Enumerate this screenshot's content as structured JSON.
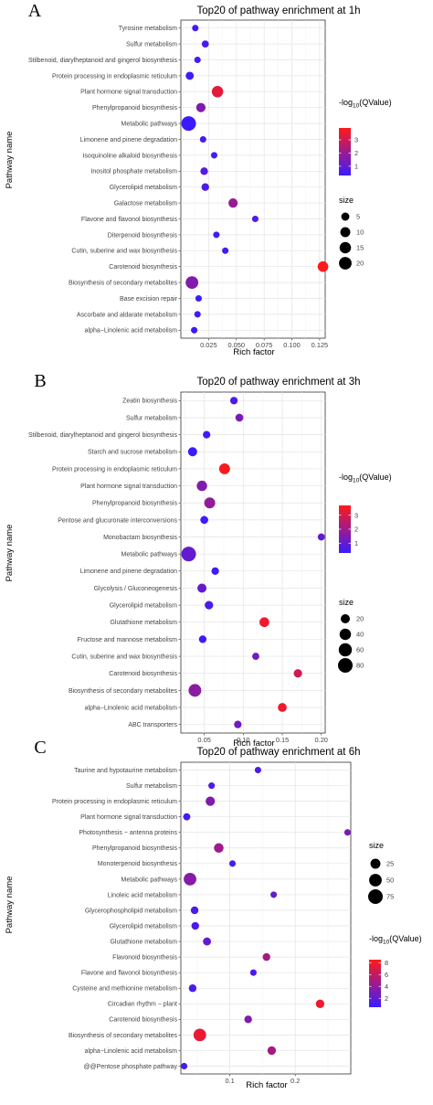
{
  "chart_data": [
    {
      "type": "scatter",
      "panel_label": "A",
      "title": "Top20 of pathway enrichment at 1h",
      "xlabel": "Rich factor",
      "ylabel": "Pathway name",
      "xlim": [
        0.0,
        0.13
      ],
      "xticks": [
        0.025,
        0.05,
        0.075,
        0.1,
        0.125
      ],
      "xtick_labels": [
        "0.025",
        "0.050",
        "0.075",
        "0.100",
        "0.125"
      ],
      "grid": true,
      "legend_order": [
        "color",
        "size"
      ],
      "categories": [
        "Tyrosine metabolism",
        "Sulfur metabolism",
        "Stilbenoid, diarylheptanoid and gingerol biosynthesis",
        "Protein processing in endoplasmic reticulum",
        "Plant hormone signal transduction",
        "Phenylpropanoid biosynthesis",
        "Metabolic pathways",
        "Limonene and pinene degradation",
        "Isoquinoline alkaloid biosynthesis",
        "Inositol phosphate metabolism",
        "Glycerolipid metabolism",
        "Galactose metabolism",
        "Flavone and flavonol biosynthesis",
        "Diterpenoid biosynthesis",
        "Cutin, suberine and wax biosynthesis",
        "Carotenoid biosynthesis",
        "Biosynthesis of secondary metabolites",
        "Base excision repair",
        "Ascorbate and aldarate metabolism",
        "alpha−Linolenic acid metabolism"
      ],
      "rich_factor": [
        0.013,
        0.022,
        0.015,
        0.008,
        0.033,
        0.018,
        0.007,
        0.02,
        0.03,
        0.021,
        0.022,
        0.047,
        0.067,
        0.032,
        0.04,
        0.128,
        0.01,
        0.016,
        0.015,
        0.012
      ],
      "qvalue_log10": [
        0.5,
        0.6,
        0.5,
        0.4,
        3.4,
        1.6,
        0.3,
        0.5,
        0.5,
        0.8,
        0.7,
        2.0,
        0.7,
        0.5,
        0.5,
        3.9,
        1.6,
        0.4,
        0.4,
        0.3
      ],
      "size": [
        2,
        3,
        2,
        5,
        15,
        8,
        30,
        2,
        2,
        4,
        4,
        8,
        2,
        2,
        2,
        12,
        20,
        2,
        2,
        2
      ],
      "color_legend": {
        "title": "-log10 (QValue)",
        "min": 0.3,
        "max": 3.9,
        "ticks": [
          1,
          2,
          3
        ],
        "low_color": "#3a1bff",
        "high_color": "#ff1a1a"
      },
      "size_legend": {
        "title": "size",
        "values": [
          5,
          10,
          15,
          20
        ]
      }
    },
    {
      "type": "scatter",
      "panel_label": "B",
      "title": "Top20 of pathway enrichment at 3h",
      "xlabel": "Rich factor",
      "ylabel": "Pathway name",
      "xlim": [
        0.02,
        0.205
      ],
      "xticks": [
        0.05,
        0.1,
        0.15,
        0.2
      ],
      "xtick_labels": [
        "0.05",
        "0.10",
        "0.15",
        "0.20"
      ],
      "grid": true,
      "legend_order": [
        "color",
        "size"
      ],
      "categories": [
        "Zeatin biosynthesis",
        "Sulfur metabolism",
        "Stilbenoid, diarylheptanoid and gingerol biosynthesis",
        "Starch and sucrose metabolism",
        "Protein processing in endoplasmic reticulum",
        "Plant hormone signal transduction",
        "Phenylpropanoid biosynthesis",
        "Pentose and glucuronate interconversions",
        "Monobactam biosynthesis",
        "Metabolic pathways",
        "Limonene and pinene degradation",
        "Glycolysis / Gluconeogenesis",
        "Glycerolipid metabolism",
        "Glutathione metabolism",
        "Fructose and mannose metabolism",
        "Cutin, suberine and wax biosynthesis",
        "Carotenoid biosynthesis",
        "Biosynthesis of secondary metabolites",
        "alpha−Linolenic acid metabolism",
        "ABC transporters"
      ],
      "rich_factor": [
        0.088,
        0.095,
        0.053,
        0.035,
        0.076,
        0.047,
        0.057,
        0.05,
        0.2,
        0.03,
        0.064,
        0.047,
        0.056,
        0.127,
        0.048,
        0.116,
        0.17,
        0.038,
        0.15,
        0.093
      ],
      "qvalue_log10": [
        0.7,
        1.4,
        0.4,
        0.3,
        3.6,
        1.5,
        1.8,
        0.4,
        1.0,
        1.0,
        0.4,
        1.0,
        0.6,
        3.4,
        0.3,
        1.3,
        2.9,
        1.7,
        3.4,
        1.2
      ],
      "size": [
        10,
        12,
        10,
        20,
        35,
        30,
        35,
        12,
        8,
        80,
        10,
        20,
        15,
        25,
        10,
        8,
        15,
        55,
        18,
        10
      ],
      "color_legend": {
        "title": "-log10 (QValue)",
        "min": 0.3,
        "max": 3.7,
        "ticks": [
          1,
          2,
          3
        ],
        "low_color": "#3a1bff",
        "high_color": "#ff1a1a"
      },
      "size_legend": {
        "title": "size",
        "values": [
          20,
          40,
          60,
          80
        ]
      }
    },
    {
      "type": "scatter",
      "panel_label": "C",
      "title": "Top20 of pathway enrichment at 6h",
      "xlabel": "Rich factor",
      "ylabel": "Pathway name",
      "xlim": [
        0.025,
        0.285
      ],
      "xticks": [
        0.1,
        0.2
      ],
      "xtick_labels": [
        "0.1",
        "0.2"
      ],
      "grid": true,
      "legend_order": [
        "size",
        "color"
      ],
      "categories": [
        "Taurine and hypotaurine metabolism",
        "Sulfur metabolism",
        "Protein processing in endoplasmic reticulum",
        "Plant hormone signal transduction",
        "Photosynthesis − antenna proteins",
        "Phenylpropanoid biosynthesis",
        "Monoterpenoid biosynthesis",
        "Metabolic pathways",
        "Linoleic acid metabolism",
        "Glycerophospholipid metabolism",
        "Glycerolipid metabolism",
        "Glutathione metabolism",
        "Flavonoid biosynthesis",
        "Flavone and flavonol biosynthesis",
        "Cysteine and methionine metabolism",
        "Circadian rhythm − plant",
        "Carotenoid biosynthesis",
        "Biosynthesis of secondary metabolites",
        "alpha−Linolenic acid metabolism",
        "@@Pentose phosphate pathway"
      ],
      "rich_factor": [
        0.143,
        0.072,
        0.07,
        0.034,
        0.28,
        0.083,
        0.104,
        0.039,
        0.167,
        0.046,
        0.047,
        0.065,
        0.156,
        0.136,
        0.043,
        0.238,
        0.128,
        0.054,
        0.164,
        0.03
      ],
      "qvalue_log10": [
        1.2,
        1.3,
        3.4,
        1.0,
        3.0,
        4.6,
        1.1,
        3.6,
        2.3,
        1.2,
        1.2,
        2.2,
        4.8,
        1.0,
        1.1,
        7.8,
        3.4,
        7.6,
        5.0,
        1.0
      ],
      "size": [
        5,
        5,
        20,
        8,
        5,
        22,
        5,
        50,
        5,
        10,
        10,
        12,
        10,
        5,
        10,
        15,
        10,
        50,
        15,
        5
      ],
      "color_legend": {
        "title": "-log10 (QValue)",
        "min": 0.5,
        "max": 8.5,
        "ticks": [
          2,
          4,
          6,
          8
        ],
        "low_color": "#3a1bff",
        "high_color": "#ff1a1a"
      },
      "size_legend": {
        "title": "size",
        "values": [
          25,
          50,
          75
        ]
      }
    }
  ]
}
